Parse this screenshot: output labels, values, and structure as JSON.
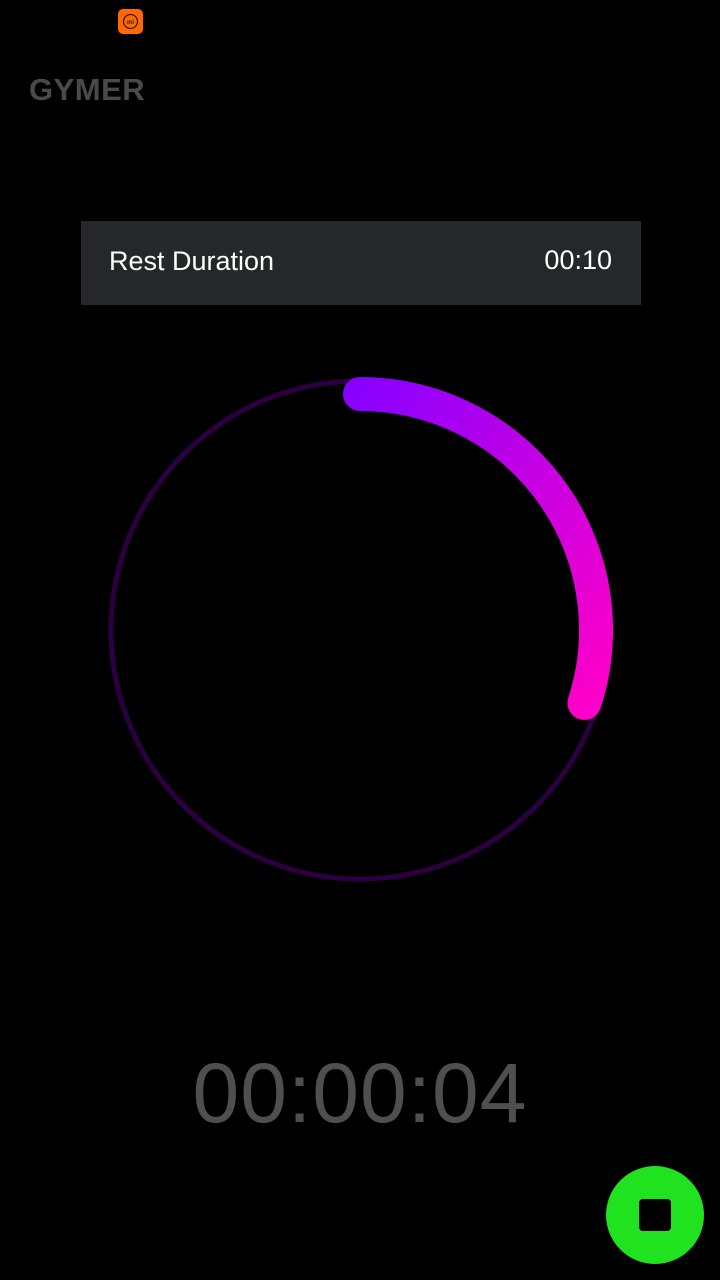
{
  "status_bar": {
    "notification_icon": "mi-app-icon"
  },
  "app": {
    "title": "GYMER"
  },
  "rest": {
    "label": "Rest Duration",
    "value": "00:10"
  },
  "timer": {
    "elapsed": "00:00:04",
    "progress_fraction": 0.3
  },
  "controls": {
    "stop_icon": "stop-icon"
  },
  "colors": {
    "background": "#000000",
    "card": "#26272b",
    "ring_track": "#2c0040",
    "progress_start": "#8a00ff",
    "progress_end": "#ff00c8",
    "fab": "#21e21f",
    "timer_text": "#4f4f4f",
    "title_text": "#4a4a4a"
  }
}
